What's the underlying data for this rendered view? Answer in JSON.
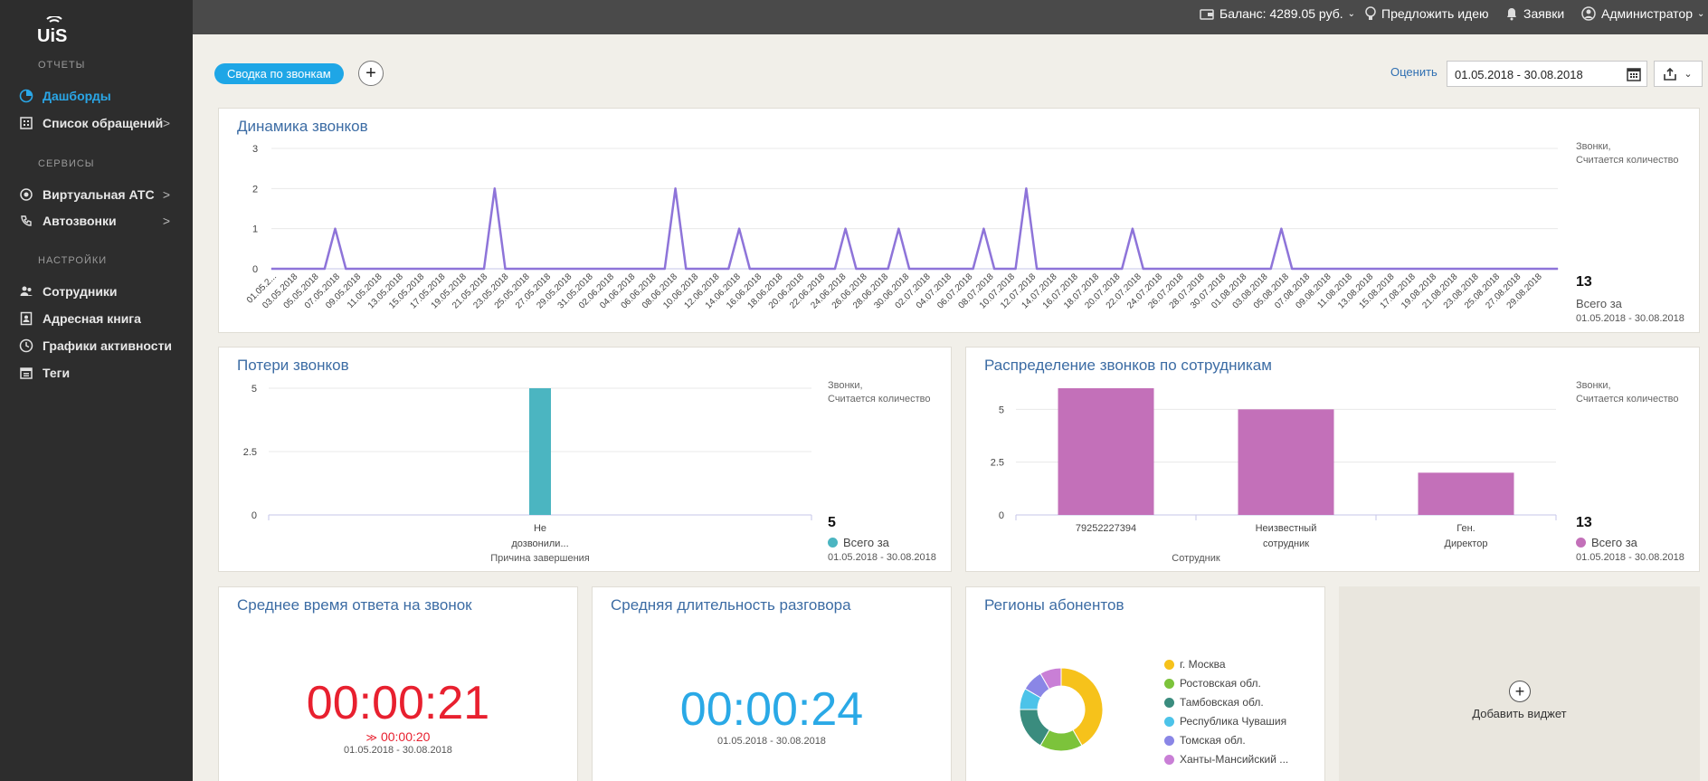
{
  "app": {
    "logo_text": "UiS"
  },
  "sidebar": {
    "sections": [
      {
        "title": "ОТЧЕТЫ",
        "items": [
          {
            "label": "Дашборды",
            "icon": "chart-pie-icon",
            "active": true,
            "has_submenu": false
          },
          {
            "label": "Список обращений",
            "icon": "list-icon",
            "active": false,
            "has_submenu": true
          }
        ]
      },
      {
        "title": "СЕРВИСЫ",
        "items": [
          {
            "label": "Виртуальная АТС",
            "icon": "pbx-icon",
            "active": false,
            "has_submenu": true
          },
          {
            "label": "Автозвонки",
            "icon": "autocall-icon",
            "active": false,
            "has_submenu": true
          }
        ]
      },
      {
        "title": "НАСТРОЙКИ",
        "items": [
          {
            "label": "Сотрудники",
            "icon": "users-icon",
            "active": false,
            "has_submenu": false
          },
          {
            "label": "Адресная книга",
            "icon": "address-book-icon",
            "active": false,
            "has_submenu": false
          },
          {
            "label": "Графики активности",
            "icon": "activity-icon",
            "active": false,
            "has_submenu": false
          },
          {
            "label": "Теги",
            "icon": "tags-icon",
            "active": false,
            "has_submenu": false
          }
        ]
      }
    ],
    "submenu_glyph": ">"
  },
  "topbar": {
    "balance": "Баланс: 4289.05 руб.",
    "idea": "Предложить идею",
    "requests": "Заявки",
    "user": "Администратор"
  },
  "toolbar": {
    "dashboard_tab": "Сводка по звонкам",
    "add_glyph": "+",
    "rate_link": "Оценить",
    "date_range": "01.05.2018 - 30.08.2018"
  },
  "widgets": {
    "dynamics": {
      "title": "Динамика звонков",
      "note_line1": "Звонки,",
      "note_line2": "Считается количество",
      "total": "13",
      "total_label": "Всего за",
      "period": "01.05.2018 - 30.08.2018"
    },
    "losses": {
      "title": "Потери звонков",
      "note_line1": "Звонки,",
      "note_line2": "Считается количество",
      "total": "5",
      "total_label": "Всего за",
      "period": "01.05.2018 - 30.08.2018"
    },
    "by_employee": {
      "title": "Распределение звонков по сотрудникам",
      "note_line1": "Звонки,",
      "note_line2": "Считается количество",
      "total": "13",
      "total_label": "Всего за",
      "period": "01.05.2018 - 30.08.2018"
    },
    "avg_answer": {
      "title": "Среднее время ответа на звонок",
      "value": "00:00:21",
      "delta": "00:00:20",
      "period": "01.05.2018 - 30.08.2018"
    },
    "avg_talk": {
      "title": "Средняя длительность разговора",
      "value": "00:00:24",
      "period": "01.05.2018 - 30.08.2018"
    },
    "regions": {
      "title": "Регионы абонентов"
    },
    "add_widget": {
      "plus": "+",
      "label": "Добавить виджет"
    }
  },
  "colors": {
    "accent": "#1ea6e6",
    "line": "#8e74d9",
    "teal": "#4bb5c1",
    "magenta": "#c370b9",
    "red": "#e8202f",
    "blue_timer": "#2aa9e6"
  },
  "chart_data": [
    {
      "type": "line",
      "title": "Динамика звонков",
      "xlabel": "",
      "ylabel": "Звонки, Считается количество",
      "ylim": [
        0,
        3
      ],
      "yticks": [
        "3",
        "2",
        "1",
        "0"
      ],
      "x": [
        "01.05.2...",
        "03.05.2018",
        "05.05.2018",
        "07.05.2018",
        "09.05.2018",
        "11.05.2018",
        "13.05.2018",
        "15.05.2018",
        "17.05.2018",
        "19.05.2018",
        "21.05.2018",
        "23.05.2018",
        "25.05.2018",
        "27.05.2018",
        "29.05.2018",
        "31.05.2018",
        "02.06.2018",
        "04.06.2018",
        "06.06.2018",
        "08.06.2018",
        "10.06.2018",
        "12.06.2018",
        "14.06.2018",
        "16.06.2018",
        "18.06.2018",
        "20.06.2018",
        "22.06.2018",
        "24.06.2018",
        "26.06.2018",
        "28.06.2018",
        "30.06.2018",
        "02.07.2018",
        "04.07.2018",
        "06.07.2018",
        "08.07.2018",
        "10.07.2018",
        "12.07.2018",
        "14.07.2018",
        "16.07.2018",
        "18.07.2018",
        "20.07.2018",
        "22.07.2018",
        "24.07.2018",
        "26.07.2018",
        "28.07.2018",
        "30.07.2018",
        "01.08.2018",
        "03.08.2018",
        "05.08.2018",
        "07.08.2018",
        "09.08.2018",
        "11.08.2018",
        "13.08.2018",
        "15.08.2018",
        "17.08.2018",
        "19.08.2018",
        "21.08.2018",
        "23.08.2018",
        "25.08.2018",
        "27.08.2018",
        "29.08.2018"
      ],
      "points": [
        {
          "date": "01.05.2018",
          "value": 0
        },
        {
          "date": "06.05.2018",
          "value": 0
        },
        {
          "date": "07.05.2018",
          "value": 1
        },
        {
          "date": "08.05.2018",
          "value": 0
        },
        {
          "date": "21.05.2018",
          "value": 0
        },
        {
          "date": "22.05.2018",
          "value": 2
        },
        {
          "date": "23.05.2018",
          "value": 0
        },
        {
          "date": "07.06.2018",
          "value": 0
        },
        {
          "date": "08.06.2018",
          "value": 2
        },
        {
          "date": "09.06.2018",
          "value": 0
        },
        {
          "date": "13.06.2018",
          "value": 0
        },
        {
          "date": "14.06.2018",
          "value": 1
        },
        {
          "date": "15.06.2018",
          "value": 0
        },
        {
          "date": "23.06.2018",
          "value": 0
        },
        {
          "date": "24.06.2018",
          "value": 1
        },
        {
          "date": "25.06.2018",
          "value": 0
        },
        {
          "date": "28.06.2018",
          "value": 0
        },
        {
          "date": "29.06.2018",
          "value": 1
        },
        {
          "date": "30.06.2018",
          "value": 0
        },
        {
          "date": "06.07.2018",
          "value": 0
        },
        {
          "date": "07.07.2018",
          "value": 1
        },
        {
          "date": "08.07.2018",
          "value": 0
        },
        {
          "date": "10.07.2018",
          "value": 0
        },
        {
          "date": "11.07.2018",
          "value": 2
        },
        {
          "date": "12.07.2018",
          "value": 0
        },
        {
          "date": "20.07.2018",
          "value": 0
        },
        {
          "date": "21.07.2018",
          "value": 1
        },
        {
          "date": "22.07.2018",
          "value": 0
        },
        {
          "date": "03.08.2018",
          "value": 0
        },
        {
          "date": "04.08.2018",
          "value": 1
        },
        {
          "date": "05.08.2018",
          "value": 0
        },
        {
          "date": "30.08.2018",
          "value": 0
        }
      ]
    },
    {
      "type": "bar",
      "title": "Потери звонков",
      "xlabel": "Причина завершения",
      "ylabel": "Звонки, Считается количество",
      "ylim": [
        0,
        5
      ],
      "yticks": [
        "5",
        "2.5",
        "0"
      ],
      "categories": [
        "Не дозвонили..."
      ],
      "values": [
        5
      ]
    },
    {
      "type": "bar",
      "title": "Распределение звонков по сотрудникам",
      "xlabel": "Сотрудник",
      "ylabel": "Звонки, Считается количество",
      "ylim": [
        0,
        6
      ],
      "yticks": [
        "5",
        "2.5",
        "0"
      ],
      "categories": [
        "79252227394",
        "Неизвестный сотрудник",
        "Ген. Директор"
      ],
      "values": [
        6,
        5,
        2
      ]
    },
    {
      "type": "pie",
      "title": "Регионы абонентов",
      "categories": [
        "г. Москва",
        "Ростовская обл.",
        "Тамбовская обл.",
        "Республика Чувашия",
        "Томская обл.",
        "Ханты-Мансийский ..."
      ],
      "values": [
        5,
        2,
        2,
        1,
        1,
        1
      ],
      "colors": [
        "#f6c21b",
        "#7cc33b",
        "#3a8c7e",
        "#4cc3e9",
        "#8a86e6",
        "#c97fd6"
      ]
    }
  ]
}
